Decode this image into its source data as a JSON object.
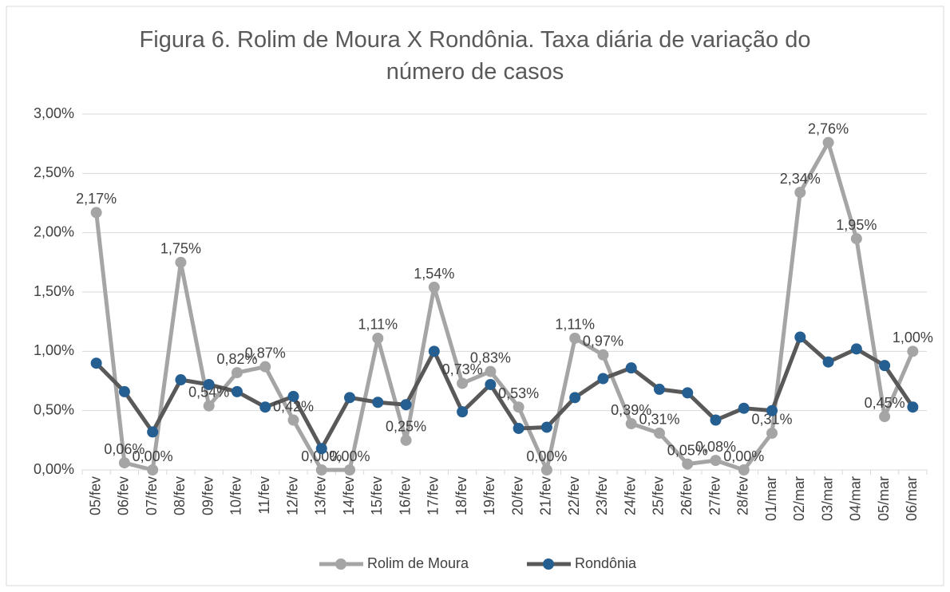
{
  "chart_data": {
    "type": "line",
    "title": "Figura 6. Rolim de Moura X Rondônia. Taxa diária de variação do número de casos",
    "categories": [
      "05/fev",
      "06/fev",
      "07/fev",
      "08/fev",
      "09/fev",
      "10/fev",
      "11/fev",
      "12/fev",
      "13/fev",
      "14/fev",
      "15/fev",
      "16/fev",
      "17/fev",
      "18/fev",
      "19/fev",
      "20/fev",
      "21/fev",
      "22/fev",
      "23/fev",
      "24/fev",
      "25/fev",
      "26/fev",
      "27/fev",
      "28/fev",
      "01/mar",
      "02/mar",
      "03/mar",
      "04/mar",
      "05/mar",
      "06/mar"
    ],
    "series": [
      {
        "name": "Rolim de Moura",
        "color": "#a5a5a5",
        "marker_color": "#a5a5a5",
        "values": [
          2.17,
          0.06,
          0,
          1.75,
          0.54,
          0.82,
          0.87,
          0.42,
          0,
          0,
          1.11,
          0.25,
          1.54,
          0.73,
          0.83,
          0.53,
          0,
          1.11,
          0.97,
          0.39,
          0.31,
          0.05,
          0.08,
          0,
          0.31,
          2.34,
          2.76,
          1.95,
          0.45,
          1.0
        ],
        "value_labels": [
          "2,17%",
          "0,06%",
          "0,00%",
          "1,75%",
          "0,54%",
          "0,82%",
          "0,87%",
          "0,42%",
          "0,00%",
          "0,00%",
          "1,11%",
          "0,25%",
          "1,54%",
          "0,73%",
          "0,83%",
          "0,53%",
          "0,00%",
          "1,11%",
          "0,97%",
          "0,39%",
          "0,31%",
          "0,05%",
          "0,08%",
          "0,00%",
          "0,31%",
          "2,34%",
          "2,76%",
          "1,95%",
          "0,45%",
          "1,00%"
        ]
      },
      {
        "name": "Rondônia",
        "color": "#595959",
        "marker_color": "#255e91",
        "values": [
          0.9,
          0.66,
          0.32,
          0.76,
          0.72,
          0.66,
          0.53,
          0.62,
          0.18,
          0.61,
          0.57,
          0.55,
          1.0,
          0.49,
          0.72,
          0.35,
          0.36,
          0.61,
          0.77,
          0.86,
          0.68,
          0.65,
          0.42,
          0.52,
          0.5,
          1.12,
          0.91,
          1.02,
          0.88,
          0.53
        ]
      }
    ],
    "ylim": [
      0,
      3
    ],
    "yticks": [
      {
        "value": 0,
        "label": "0,00%"
      },
      {
        "value": 0.5,
        "label": "0,50%"
      },
      {
        "value": 1,
        "label": "1,00%"
      },
      {
        "value": 1.5,
        "label": "1,50%"
      },
      {
        "value": 2,
        "label": "2,00%"
      },
      {
        "value": 2.5,
        "label": "2,50%"
      },
      {
        "value": 3,
        "label": "3,00%"
      }
    ],
    "grid": true,
    "legend": "bottom"
  }
}
